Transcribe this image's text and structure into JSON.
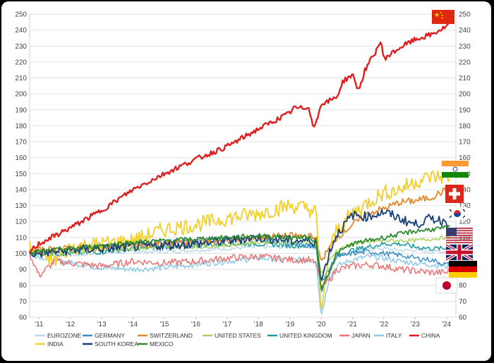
{
  "chart_data": {
    "type": "line",
    "x_ticks": [
      "'11",
      "'12",
      "'13",
      "'14",
      "'15",
      "'16",
      "'17",
      "'18",
      "'19",
      "'20",
      "'21",
      "'22",
      "'23",
      "'24"
    ],
    "x_range": [
      2010.7,
      2024.3
    ],
    "ylim": [
      60,
      250
    ],
    "y_ticks": [
      60,
      70,
      80,
      90,
      100,
      110,
      120,
      130,
      140,
      150,
      160,
      170,
      180,
      190,
      200,
      210,
      220,
      230,
      240,
      250
    ],
    "grid": "horizontal",
    "legend_position": "bottom",
    "flag_icons": [
      "china-flag",
      "india-flag",
      "switzerland-flag",
      "south-korea-flag",
      "united-states-flag",
      "united-kingdom-flag",
      "germany-flag",
      "japan-flag"
    ],
    "series": [
      {
        "name": "EUROZONE",
        "color": "#b9d8ea",
        "width": 1.4,
        "points": [
          [
            2010.7,
            100
          ],
          [
            2011,
            99
          ],
          [
            2012,
            99
          ],
          [
            2013,
            100
          ],
          [
            2014,
            101
          ],
          [
            2015,
            101
          ],
          [
            2016,
            102
          ],
          [
            2017,
            103
          ],
          [
            2018,
            104
          ],
          [
            2019,
            104
          ],
          [
            2019.6,
            104
          ],
          [
            2019.85,
            103
          ],
          [
            2020.0,
            84
          ],
          [
            2020.25,
            90
          ],
          [
            2020.5,
            99
          ],
          [
            2021,
            101
          ],
          [
            2021.5,
            103
          ],
          [
            2022,
            103
          ],
          [
            2022.5,
            102
          ],
          [
            2023,
            102
          ],
          [
            2023.5,
            101
          ],
          [
            2024,
            101
          ],
          [
            2024.1,
            101
          ]
        ]
      },
      {
        "name": "GERMANY",
        "color": "#3f8fc9",
        "width": 1.5,
        "points": [
          [
            2010.7,
            101
          ],
          [
            2011,
            100
          ],
          [
            2012,
            102
          ],
          [
            2013,
            104
          ],
          [
            2014,
            106
          ],
          [
            2015,
            107
          ],
          [
            2016,
            108
          ],
          [
            2017,
            109
          ],
          [
            2018,
            110
          ],
          [
            2019,
            106
          ],
          [
            2019.6,
            105
          ],
          [
            2019.85,
            104
          ],
          [
            2020.0,
            82
          ],
          [
            2020.25,
            90
          ],
          [
            2020.5,
            98
          ],
          [
            2021,
            100
          ],
          [
            2021.5,
            101
          ],
          [
            2022,
            100
          ],
          [
            2022.5,
            99
          ],
          [
            2023,
            97
          ],
          [
            2023.5,
            96
          ],
          [
            2024,
            93
          ],
          [
            2024.1,
            93
          ]
        ]
      },
      {
        "name": "SWITZERLAND",
        "color": "#e08a2b",
        "width": 1.8,
        "points": [
          [
            2010.7,
            101
          ],
          [
            2011,
            102
          ],
          [
            2012,
            103
          ],
          [
            2013,
            104
          ],
          [
            2014,
            105
          ],
          [
            2015,
            106
          ],
          [
            2016,
            107
          ],
          [
            2017,
            108
          ],
          [
            2018,
            110
          ],
          [
            2019,
            111
          ],
          [
            2019.6,
            111
          ],
          [
            2019.85,
            109
          ],
          [
            2020.0,
            95
          ],
          [
            2020.25,
            103
          ],
          [
            2020.5,
            110
          ],
          [
            2021,
            118
          ],
          [
            2021.5,
            125
          ],
          [
            2022,
            128
          ],
          [
            2022.5,
            132
          ],
          [
            2023,
            133
          ],
          [
            2023.5,
            135
          ],
          [
            2024,
            140
          ],
          [
            2024.1,
            140
          ]
        ]
      },
      {
        "name": "UNITED STATES",
        "color": "#a9d25c",
        "width": 1.5,
        "points": [
          [
            2010.7,
            100
          ],
          [
            2011,
            100
          ],
          [
            2012,
            101
          ],
          [
            2013,
            102
          ],
          [
            2014,
            103
          ],
          [
            2015,
            104
          ],
          [
            2016,
            104
          ],
          [
            2017,
            105
          ],
          [
            2018,
            107
          ],
          [
            2019,
            107
          ],
          [
            2019.6,
            107
          ],
          [
            2019.85,
            106
          ],
          [
            2020.0,
            87
          ],
          [
            2020.25,
            95
          ],
          [
            2020.5,
            102
          ],
          [
            2021,
            106
          ],
          [
            2021.5,
            107
          ],
          [
            2022,
            108
          ],
          [
            2022.5,
            108
          ],
          [
            2023,
            108
          ],
          [
            2023.5,
            109
          ],
          [
            2024,
            110
          ],
          [
            2024.1,
            110
          ]
        ]
      },
      {
        "name": "UNITED KINGDOM",
        "color": "#1b9aa0",
        "width": 1.5,
        "points": [
          [
            2010.7,
            100
          ],
          [
            2011,
            100
          ],
          [
            2012,
            100
          ],
          [
            2013,
            101
          ],
          [
            2014,
            103
          ],
          [
            2015,
            104
          ],
          [
            2016,
            105
          ],
          [
            2017,
            106
          ],
          [
            2018,
            106
          ],
          [
            2019,
            105
          ],
          [
            2019.6,
            105
          ],
          [
            2019.85,
            104
          ],
          [
            2020.0,
            75
          ],
          [
            2020.25,
            88
          ],
          [
            2020.5,
            98
          ],
          [
            2021,
            102
          ],
          [
            2021.5,
            104
          ],
          [
            2022,
            106
          ],
          [
            2022.5,
            106
          ],
          [
            2023,
            104
          ],
          [
            2023.5,
            103
          ],
          [
            2024,
            103
          ],
          [
            2024.1,
            103
          ]
        ]
      },
      {
        "name": "JAPAN",
        "color": "#ec7374",
        "width": 1.5,
        "points": [
          [
            2010.7,
            100
          ],
          [
            2011,
            86
          ],
          [
            2011.5,
            95
          ],
          [
            2012,
            94
          ],
          [
            2013,
            92
          ],
          [
            2014,
            95
          ],
          [
            2015,
            94
          ],
          [
            2016,
            95
          ],
          [
            2017,
            97
          ],
          [
            2018,
            98
          ],
          [
            2019,
            96
          ],
          [
            2019.6,
            96
          ],
          [
            2019.85,
            93
          ],
          [
            2020.0,
            79
          ],
          [
            2020.25,
            83
          ],
          [
            2020.5,
            90
          ],
          [
            2021,
            92
          ],
          [
            2021.5,
            93
          ],
          [
            2022,
            92
          ],
          [
            2022.5,
            90
          ],
          [
            2023,
            89
          ],
          [
            2023.5,
            88
          ],
          [
            2024,
            88
          ],
          [
            2024.1,
            89
          ]
        ]
      },
      {
        "name": "ITALY",
        "color": "#8ccbe8",
        "width": 1.5,
        "points": [
          [
            2010.7,
            100
          ],
          [
            2011,
            98
          ],
          [
            2012,
            94
          ],
          [
            2013,
            91
          ],
          [
            2014,
            90
          ],
          [
            2015,
            91
          ],
          [
            2016,
            93
          ],
          [
            2017,
            95
          ],
          [
            2018,
            97
          ],
          [
            2019,
            96
          ],
          [
            2019.6,
            96
          ],
          [
            2019.85,
            95
          ],
          [
            2020.0,
            60
          ],
          [
            2020.25,
            84
          ],
          [
            2020.5,
            92
          ],
          [
            2021,
            96
          ],
          [
            2021.5,
            98
          ],
          [
            2022,
            97
          ],
          [
            2022.5,
            95
          ],
          [
            2023,
            94
          ],
          [
            2023.5,
            93
          ],
          [
            2024,
            92
          ],
          [
            2024.1,
            92
          ]
        ]
      },
      {
        "name": "CHINA",
        "color": "#e02020",
        "width": 2.4,
        "points": [
          [
            2010.7,
            101
          ],
          [
            2011,
            106
          ],
          [
            2012,
            116
          ],
          [
            2013,
            127
          ],
          [
            2014,
            140
          ],
          [
            2015,
            150
          ],
          [
            2016,
            159
          ],
          [
            2017,
            167
          ],
          [
            2018,
            178
          ],
          [
            2018.5,
            183
          ],
          [
            2019,
            188
          ],
          [
            2019.1,
            191
          ],
          [
            2019.5,
            191
          ],
          [
            2019.6,
            193
          ],
          [
            2019.75,
            178
          ],
          [
            2020.0,
            193
          ],
          [
            2020.5,
            198
          ],
          [
            2020.7,
            208
          ],
          [
            2021,
            212
          ],
          [
            2021.2,
            202
          ],
          [
            2021.4,
            215
          ],
          [
            2021.7,
            225
          ],
          [
            2021.9,
            233
          ],
          [
            2022.0,
            222
          ],
          [
            2022.3,
            226
          ],
          [
            2022.6,
            230
          ],
          [
            2023,
            234
          ],
          [
            2023.5,
            237
          ],
          [
            2024,
            242
          ],
          [
            2024.1,
            244
          ]
        ]
      },
      {
        "name": "INDIA",
        "color": "#f2cf2a",
        "width": 1.8,
        "points": [
          [
            2010.7,
            103
          ],
          [
            2011,
            100
          ],
          [
            2011.5,
            95
          ],
          [
            2012,
            104
          ],
          [
            2013,
            106
          ],
          [
            2014,
            108
          ],
          [
            2015,
            115
          ],
          [
            2016,
            118
          ],
          [
            2017,
            122
          ],
          [
            2018,
            125
          ],
          [
            2019,
            130
          ],
          [
            2019.6,
            128
          ],
          [
            2019.85,
            125
          ],
          [
            2020.0,
            62
          ],
          [
            2020.25,
            100
          ],
          [
            2020.5,
            115
          ],
          [
            2021,
            125
          ],
          [
            2021.5,
            132
          ],
          [
            2022,
            138
          ],
          [
            2022.5,
            140
          ],
          [
            2023,
            145
          ],
          [
            2023.5,
            148
          ],
          [
            2024,
            148
          ],
          [
            2024.1,
            148
          ]
        ]
      },
      {
        "name": "SOUTH KOREA",
        "color": "#173d7a",
        "width": 1.8,
        "points": [
          [
            2010.7,
            100
          ],
          [
            2011,
            100
          ],
          [
            2012,
            102
          ],
          [
            2013,
            103
          ],
          [
            2014,
            104
          ],
          [
            2015,
            105
          ],
          [
            2016,
            106
          ],
          [
            2017,
            108
          ],
          [
            2018,
            110
          ],
          [
            2019,
            108
          ],
          [
            2019.6,
            108
          ],
          [
            2019.85,
            107
          ],
          [
            2020.0,
            82
          ],
          [
            2020.25,
            100
          ],
          [
            2020.5,
            112
          ],
          [
            2021,
            124
          ],
          [
            2021.5,
            123
          ],
          [
            2022,
            126
          ],
          [
            2022.5,
            122
          ],
          [
            2023,
            118
          ],
          [
            2023.5,
            122
          ],
          [
            2024,
            120
          ],
          [
            2024.1,
            120
          ]
        ]
      },
      {
        "name": "MEXICO",
        "color": "#2d8b2d",
        "width": 1.8,
        "points": [
          [
            2010.7,
            100
          ],
          [
            2011,
            101
          ],
          [
            2012,
            103
          ],
          [
            2013,
            105
          ],
          [
            2014,
            107
          ],
          [
            2015,
            108
          ],
          [
            2016,
            109
          ],
          [
            2017,
            110
          ],
          [
            2018,
            111
          ],
          [
            2019,
            110
          ],
          [
            2019.6,
            110
          ],
          [
            2019.85,
            108
          ],
          [
            2020.0,
            77
          ],
          [
            2020.25,
            88
          ],
          [
            2020.5,
            100
          ],
          [
            2021,
            106
          ],
          [
            2021.5,
            108
          ],
          [
            2022,
            110
          ],
          [
            2022.5,
            112
          ],
          [
            2023,
            114
          ],
          [
            2023.5,
            115
          ],
          [
            2024,
            116
          ],
          [
            2024.1,
            116
          ]
        ]
      }
    ],
    "legend": {
      "row1": [
        "EUROZONE",
        "GERMANY",
        "SWITZERLAND",
        "UNITED STATES",
        "UNITED KINGDOM",
        "JAPAN",
        "ITALY",
        "CHINA"
      ],
      "row2": [
        "INDIA",
        "SOUTH KOREA",
        "MEXICO"
      ]
    }
  }
}
